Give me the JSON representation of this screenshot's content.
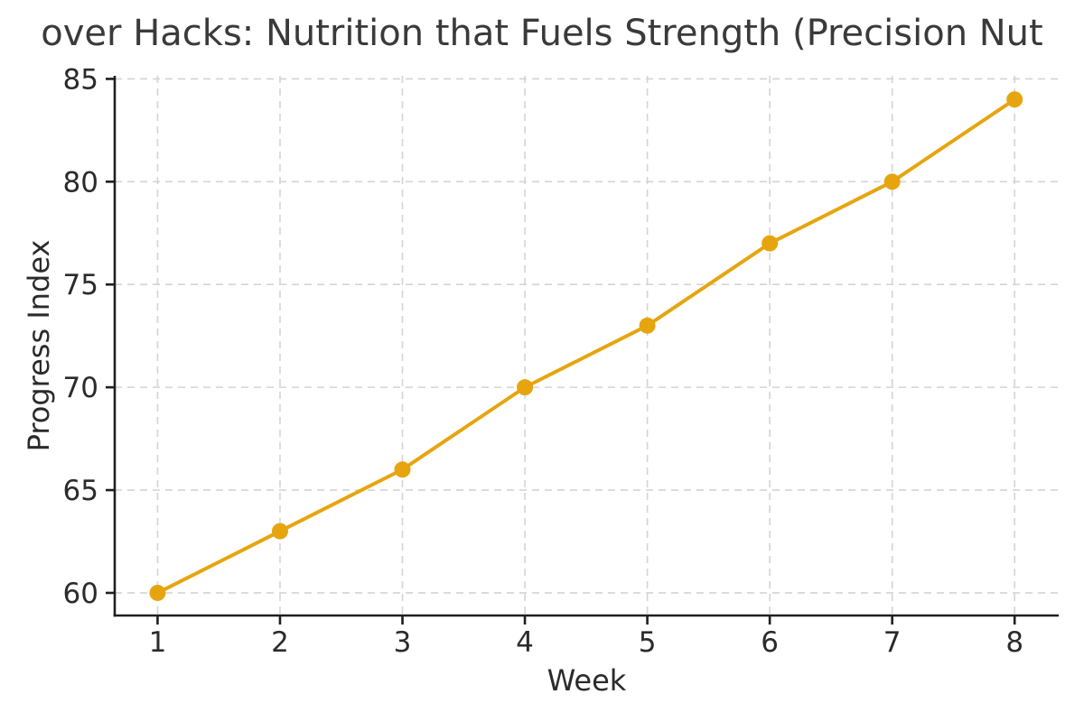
{
  "title": {
    "text": "over Hacks: Nutrition that Fuels Strength (Precision Nut",
    "color": "#3a3a3a"
  },
  "axes": {
    "xlabel": "Week",
    "ylabel": "Progress Index",
    "text_color": "#2b2b2b",
    "spine_color": "#1f1f1f"
  },
  "chart_data": {
    "type": "line",
    "title": "over Hacks: Nutrition that Fuels Strength (Precision Nut",
    "xlabel": "Week",
    "ylabel": "Progress Index",
    "x": [
      1,
      2,
      3,
      4,
      5,
      6,
      7,
      8
    ],
    "series": [
      {
        "name": "Progress Index",
        "values": [
          60,
          63,
          66,
          70,
          73,
          77,
          80,
          84
        ],
        "color": "#E6A50F",
        "marker": "circle",
        "line_width": 4,
        "marker_radius": 9
      }
    ],
    "xticks": [
      1,
      2,
      3,
      4,
      5,
      6,
      7,
      8
    ],
    "yticks": [
      60,
      65,
      70,
      75,
      80,
      85
    ],
    "xlim": [
      0.65,
      8.36
    ],
    "ylim": [
      58.9,
      85.15
    ],
    "grid": true,
    "grid_color": "#d4d4d4",
    "grid_style": "dashed",
    "legend_position": "none",
    "background": "#ffffff"
  }
}
